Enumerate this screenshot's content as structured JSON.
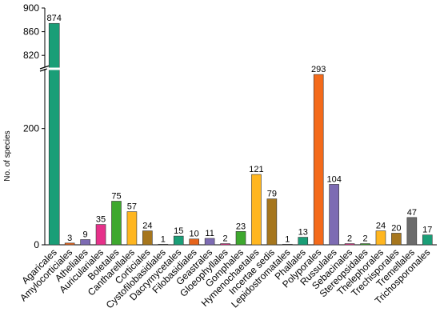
{
  "chart_data": {
    "type": "bar",
    "title": "",
    "xlabel": "",
    "ylabel": "No. of species",
    "axis_break": true,
    "lower_ylim": [
      0,
      300
    ],
    "upper_ylim": [
      800,
      900
    ],
    "y_ticks_lower": [
      0,
      200
    ],
    "y_ticks_upper": [
      820,
      860,
      900
    ],
    "grid": false,
    "categories": [
      "Agaricales",
      "Amylocorticiales",
      "Atheliales",
      "Auriculariales",
      "Boletales",
      "Cantharellales",
      "Corticiales",
      "Cystofilobasidiales",
      "Dacrymycetales",
      "Filobasidiales",
      "Geastrales",
      "Gloeophyllales",
      "Gomphales",
      "Hymenochaetales",
      "Incertae sedis",
      "Lepidostromatales",
      "Phallales",
      "Polyporales",
      "Russulales",
      "Sebacinales",
      "Stereopsidales",
      "Thelephorales",
      "Trechisporales",
      "Tremellales",
      "Trichosporonales"
    ],
    "values": [
      874,
      3,
      9,
      35,
      75,
      57,
      24,
      1,
      15,
      10,
      11,
      2,
      23,
      121,
      79,
      1,
      13,
      293,
      104,
      2,
      2,
      24,
      20,
      47,
      17
    ],
    "colors": [
      "#1a9e77",
      "#e7641b",
      "#7d6bb3",
      "#e6318a",
      "#3ea82e",
      "#ffb61f",
      "#a6761d",
      "#6b6b6b",
      "#1a9e77",
      "#e7641b",
      "#7d6bb3",
      "#e6318a",
      "#3ea82e",
      "#ffb61f",
      "#a6761d",
      "#6b6b6b",
      "#1a9e77",
      "#f46a1a",
      "#7d6bb3",
      "#e6318a",
      "#3ea82e",
      "#ffb61f",
      "#a6761d",
      "#6b6b6b",
      "#1a9e77"
    ]
  }
}
